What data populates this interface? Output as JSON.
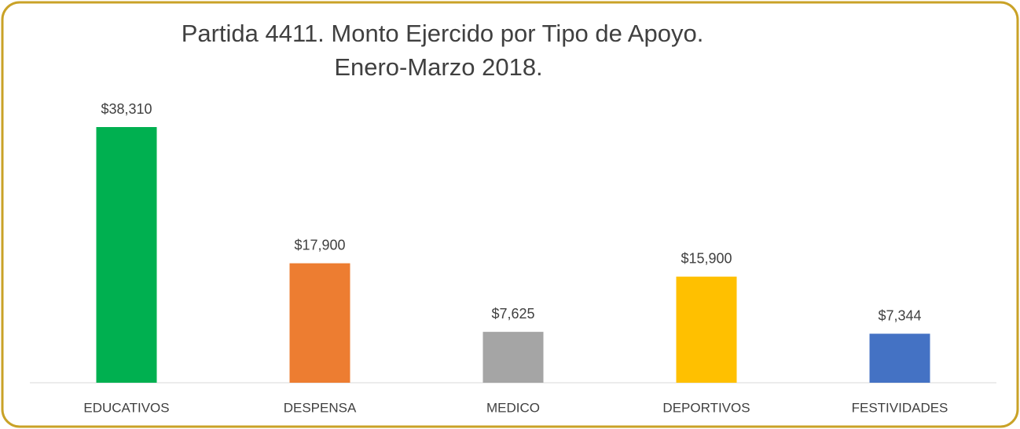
{
  "chart_data": {
    "type": "bar",
    "title": "Partida 4411. Monto Ejercido por Tipo de Apoyo.",
    "subtitle": "Enero-Marzo 2018.",
    "categories": [
      "EDUCATIVOS",
      "DESPENSA",
      "MEDICO",
      "DEPORTIVOS",
      "FESTIVIDADES"
    ],
    "values": [
      38310,
      17900,
      7625,
      15900,
      7344
    ],
    "value_labels": [
      "$38,310",
      "$17,900",
      "$7,625",
      "$15,900",
      "$7,344"
    ],
    "colors": [
      "#00b050",
      "#ed7d31",
      "#a5a5a5",
      "#ffc000",
      "#4472c4"
    ]
  }
}
